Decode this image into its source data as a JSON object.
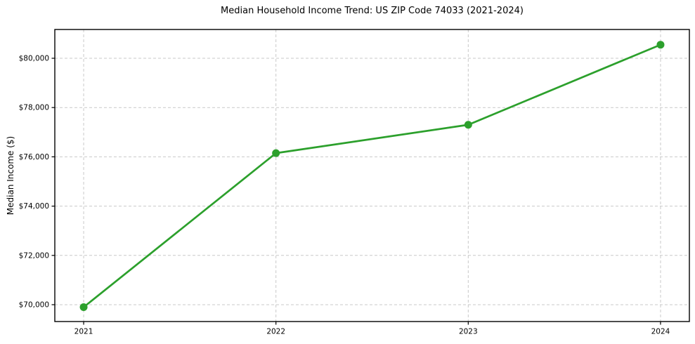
{
  "chart_data": {
    "type": "line",
    "title": "Median Household Income Trend: US ZIP Code 74033 (2021-2024)",
    "ylabel": "Median Income ($)",
    "xlabel": "",
    "categories": [
      "2021",
      "2022",
      "2023",
      "2024"
    ],
    "x": [
      0,
      1,
      2,
      3
    ],
    "values": [
      69900,
      76150,
      77300,
      80550
    ],
    "xlim": [
      -0.15,
      3.15
    ],
    "ylim": [
      69316,
      81168
    ],
    "yticks": [
      70000,
      72000,
      74000,
      76000,
      78000,
      80000
    ],
    "ytick_labels": [
      "$70,000",
      "$72,000",
      "$74,000",
      "$76,000",
      "$78,000",
      "$80,000"
    ],
    "grid": true,
    "grid_style": "dashed",
    "legend": false,
    "marker": "circle",
    "colors": {
      "line": "#2ca02c",
      "marker": "#2ca02c",
      "grid": "#c9c9c9",
      "axis": "#000000",
      "text": "#000000",
      "background": "#ffffff"
    }
  }
}
